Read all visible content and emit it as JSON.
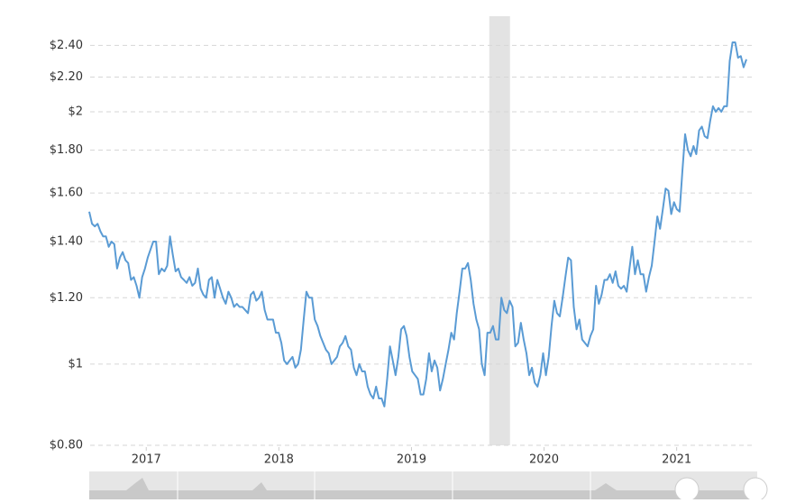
{
  "chart_data": {
    "type": "line",
    "log_scale_y": true,
    "grid": true,
    "color": "#5a9bd4",
    "band_color": "#e3e3e3",
    "xlim": [
      2016.57,
      2021.526
    ],
    "xticks": [
      2017,
      2018,
      2019,
      2020,
      2021
    ],
    "ylim": [
      0.8,
      2.6
    ],
    "yticks": [
      {
        "value": 0.8,
        "label": "$0.80"
      },
      {
        "value": 1,
        "label": "$1"
      },
      {
        "value": 1.2,
        "label": "$1.20"
      },
      {
        "value": 1.4,
        "label": "$1.40"
      },
      {
        "value": 1.6,
        "label": "$1.60"
      },
      {
        "value": 1.8,
        "label": "$1.80"
      },
      {
        "value": 2,
        "label": "$2"
      },
      {
        "value": 2.2,
        "label": "$2.20"
      },
      {
        "value": 2.4,
        "label": "$2.40"
      }
    ],
    "shaded_band": [
      2019.587,
      2019.743
    ],
    "x": [
      2016.57,
      2016.591,
      2016.612,
      2016.633,
      2016.654,
      2016.675,
      2016.696,
      2016.717,
      2016.738,
      2016.759,
      2016.78,
      2016.801,
      2016.822,
      2016.843,
      2016.864,
      2016.885,
      2016.906,
      2016.927,
      2016.948,
      2016.969,
      2016.99,
      2017.011,
      2017.032,
      2017.053,
      2017.074,
      2017.095,
      2017.116,
      2017.137,
      2017.158,
      2017.179,
      2017.2,
      2017.221,
      2017.242,
      2017.263,
      2017.284,
      2017.305,
      2017.326,
      2017.347,
      2017.368,
      2017.389,
      2017.41,
      2017.431,
      2017.452,
      2017.473,
      2017.494,
      2017.515,
      2017.536,
      2017.557,
      2017.578,
      2017.599,
      2017.62,
      2017.641,
      2017.662,
      2017.683,
      2017.704,
      2017.725,
      2017.746,
      2017.767,
      2017.788,
      2017.809,
      2017.83,
      2017.851,
      2017.872,
      2017.893,
      2017.914,
      2017.935,
      2017.956,
      2017.977,
      2017.998,
      2018.019,
      2018.04,
      2018.061,
      2018.082,
      2018.103,
      2018.124,
      2018.145,
      2018.166,
      2018.187,
      2018.208,
      2018.229,
      2018.25,
      2018.271,
      2018.292,
      2018.313,
      2018.334,
      2018.355,
      2018.376,
      2018.397,
      2018.418,
      2018.439,
      2018.46,
      2018.481,
      2018.502,
      2018.523,
      2018.544,
      2018.565,
      2018.586,
      2018.607,
      2018.628,
      2018.649,
      2018.67,
      2018.691,
      2018.712,
      2018.733,
      2018.754,
      2018.775,
      2018.796,
      2018.817,
      2018.838,
      2018.859,
      2018.88,
      2018.901,
      2018.922,
      2018.943,
      2018.964,
      2018.985,
      2019.006,
      2019.027,
      2019.048,
      2019.069,
      2019.09,
      2019.111,
      2019.132,
      2019.153,
      2019.174,
      2019.195,
      2019.216,
      2019.237,
      2019.258,
      2019.279,
      2019.3,
      2019.321,
      2019.342,
      2019.363,
      2019.384,
      2019.405,
      2019.426,
      2019.447,
      2019.468,
      2019.489,
      2019.51,
      2019.531,
      2019.552,
      2019.573,
      2019.594,
      2019.615,
      2019.636,
      2019.657,
      2019.678,
      2019.699,
      2019.72,
      2019.741,
      2019.762,
      2019.783,
      2019.804,
      2019.825,
      2019.846,
      2019.867,
      2019.888,
      2019.909,
      2019.93,
      2019.951,
      2019.972,
      2019.993,
      2020.014,
      2020.035,
      2020.056,
      2020.077,
      2020.098,
      2020.119,
      2020.14,
      2020.161,
      2020.182,
      2020.203,
      2020.224,
      2020.245,
      2020.266,
      2020.287,
      2020.308,
      2020.329,
      2020.35,
      2020.371,
      2020.392,
      2020.413,
      2020.434,
      2020.455,
      2020.476,
      2020.497,
      2020.518,
      2020.539,
      2020.56,
      2020.581,
      2020.602,
      2020.623,
      2020.644,
      2020.665,
      2020.686,
      2020.707,
      2020.728,
      2020.749,
      2020.77,
      2020.791,
      2020.812,
      2020.833,
      2020.854,
      2020.875,
      2020.896,
      2020.917,
      2020.938,
      2020.959,
      2020.98,
      2021.001,
      2021.022,
      2021.043,
      2021.064,
      2021.085,
      2021.106,
      2021.127,
      2021.148,
      2021.169,
      2021.19,
      2021.211,
      2021.232,
      2021.253,
      2021.274,
      2021.295,
      2021.316,
      2021.337,
      2021.358,
      2021.379,
      2021.4,
      2021.421,
      2021.442,
      2021.463,
      2021.484,
      2021.505,
      2021.526
    ],
    "values": [
      1.52,
      1.47,
      1.46,
      1.47,
      1.44,
      1.42,
      1.42,
      1.38,
      1.4,
      1.39,
      1.3,
      1.34,
      1.36,
      1.33,
      1.32,
      1.26,
      1.27,
      1.24,
      1.2,
      1.27,
      1.3,
      1.34,
      1.37,
      1.4,
      1.4,
      1.28,
      1.3,
      1.29,
      1.31,
      1.42,
      1.35,
      1.29,
      1.3,
      1.27,
      1.26,
      1.25,
      1.27,
      1.24,
      1.25,
      1.3,
      1.23,
      1.21,
      1.2,
      1.26,
      1.27,
      1.2,
      1.26,
      1.23,
      1.2,
      1.18,
      1.22,
      1.2,
      1.17,
      1.18,
      1.17,
      1.17,
      1.16,
      1.15,
      1.21,
      1.22,
      1.19,
      1.2,
      1.22,
      1.16,
      1.13,
      1.13,
      1.13,
      1.09,
      1.09,
      1.06,
      1.01,
      1.0,
      1.01,
      1.02,
      0.99,
      1.0,
      1.04,
      1.13,
      1.22,
      1.2,
      1.2,
      1.13,
      1.11,
      1.08,
      1.06,
      1.04,
      1.03,
      1.0,
      1.01,
      1.02,
      1.05,
      1.06,
      1.08,
      1.05,
      1.04,
      0.99,
      0.97,
      1.0,
      0.98,
      0.98,
      0.94,
      0.92,
      0.91,
      0.94,
      0.91,
      0.91,
      0.89,
      0.96,
      1.05,
      1.01,
      0.97,
      1.02,
      1.1,
      1.11,
      1.08,
      1.02,
      0.98,
      0.97,
      0.96,
      0.92,
      0.92,
      0.96,
      1.03,
      0.98,
      1.01,
      0.99,
      0.93,
      0.96,
      1.0,
      1.04,
      1.09,
      1.07,
      1.15,
      1.22,
      1.3,
      1.3,
      1.32,
      1.26,
      1.18,
      1.13,
      1.1,
      1.0,
      0.97,
      1.09,
      1.09,
      1.11,
      1.07,
      1.07,
      1.2,
      1.16,
      1.15,
      1.19,
      1.17,
      1.05,
      1.06,
      1.12,
      1.07,
      1.03,
      0.97,
      0.99,
      0.95,
      0.94,
      0.97,
      1.03,
      0.97,
      1.02,
      1.11,
      1.19,
      1.15,
      1.14,
      1.2,
      1.27,
      1.34,
      1.33,
      1.17,
      1.1,
      1.13,
      1.07,
      1.06,
      1.05,
      1.08,
      1.1,
      1.24,
      1.18,
      1.21,
      1.26,
      1.26,
      1.28,
      1.25,
      1.29,
      1.24,
      1.23,
      1.24,
      1.22,
      1.3,
      1.38,
      1.28,
      1.33,
      1.28,
      1.28,
      1.22,
      1.27,
      1.31,
      1.4,
      1.5,
      1.45,
      1.53,
      1.62,
      1.61,
      1.51,
      1.56,
      1.53,
      1.52,
      1.7,
      1.88,
      1.8,
      1.77,
      1.82,
      1.78,
      1.9,
      1.92,
      1.87,
      1.86,
      1.95,
      2.03,
      2.0,
      2.02,
      2.0,
      2.03,
      2.03,
      2.3,
      2.42,
      2.42,
      2.32,
      2.33,
      2.26,
      2.31
    ]
  }
}
